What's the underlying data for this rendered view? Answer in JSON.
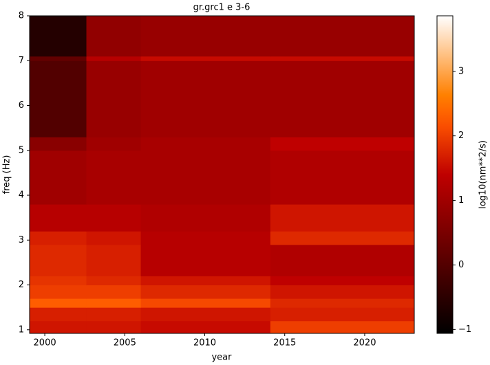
{
  "chart_data": {
    "type": "heatmap",
    "title": "gr.grc1 e 3-6",
    "x_label": "year",
    "y_label": "freq (Hz)",
    "colorbar_label": "log10(nm**2/s)",
    "colormap": "gist_heat",
    "x_edges": [
      1999.05,
      2002.6,
      2006,
      2014.1,
      2023.1
    ],
    "y_edges": [
      0.92,
      1.2,
      1.5,
      1.7,
      2.0,
      2.2,
      2.9,
      3.2,
      3.8,
      5.0,
      5.3,
      7.0,
      7.1,
      8.0
    ],
    "z": [
      [
        1.6,
        1.6,
        1.5,
        2.0
      ],
      [
        1.7,
        1.7,
        1.6,
        1.7
      ],
      [
        2.3,
        2.3,
        2.1,
        1.8
      ],
      [
        2.0,
        2.0,
        1.8,
        1.6
      ],
      [
        1.9,
        1.8,
        1.6,
        1.4
      ],
      [
        1.8,
        1.7,
        1.3,
        1.2
      ],
      [
        1.7,
        1.6,
        1.3,
        1.8
      ],
      [
        1.3,
        1.3,
        1.2,
        1.6
      ],
      [
        1.0,
        1.1,
        1.1,
        1.2
      ],
      [
        0.7,
        1.0,
        1.1,
        1.4
      ],
      [
        0.0,
        0.9,
        1.0,
        1.0
      ],
      [
        0.2,
        1.3,
        1.5,
        1.5
      ],
      [
        -0.6,
        0.8,
        0.9,
        0.9
      ]
    ],
    "xlim": [
      1999.05,
      2023.1
    ],
    "xticks": [
      2000,
      2005,
      2010,
      2015,
      2020
    ],
    "ylim": [
      0.92,
      8
    ],
    "yticks": [
      1,
      2,
      3,
      4,
      5,
      6,
      7,
      8
    ],
    "clim": [
      -1.06,
      3.86
    ],
    "cticks": [
      {
        "value": -1,
        "label": "−1"
      },
      0,
      1,
      2,
      3
    ]
  }
}
